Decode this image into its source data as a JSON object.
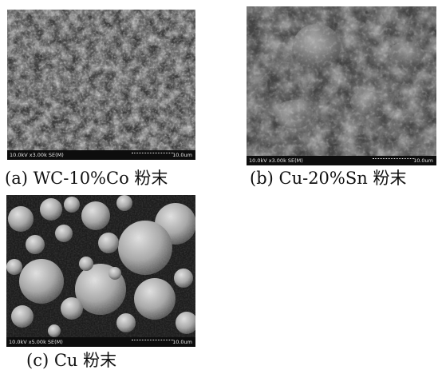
{
  "panels": [
    {
      "id": "a",
      "caption": "(a) WC-10%Co 粉末",
      "sem_info": "10.0kV x3.00k SE(M)",
      "scale_label": "10.0um",
      "subject": "irregular-fine-powder-agglomerates"
    },
    {
      "id": "b",
      "caption": "(b) Cu-20%Sn 粉末",
      "sem_info": "10.0kV x3.00k SE(M)",
      "scale_label": "10.0um",
      "subject": "irregular-coarse-powder-particles"
    },
    {
      "id": "c",
      "caption": "(c) Cu 粉末",
      "sem_info": "10.0kV x5.00k SE(M)",
      "scale_label": "10.0um",
      "subject": "spherical-powder-particles"
    }
  ]
}
